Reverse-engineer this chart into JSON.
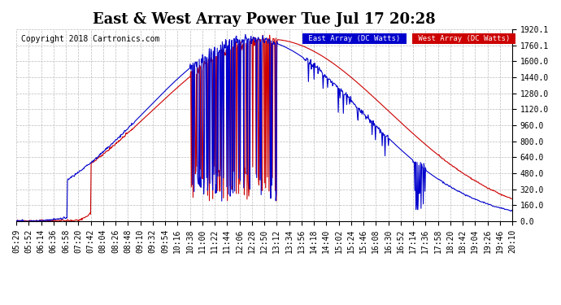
{
  "title": "East & West Array Power Tue Jul 17 20:28",
  "copyright": "Copyright 2018 Cartronics.com",
  "legend_east": "East Array (DC Watts)",
  "legend_west": "West Array (DC Watts)",
  "east_color": "#0000CC",
  "west_color": "#CC0000",
  "legend_east_bg": "#0000CC",
  "legend_west_bg": "#CC0000",
  "ymin": 0.0,
  "ymax": 1920.1,
  "yticks": [
    0.0,
    160.0,
    320.0,
    480.0,
    640.0,
    800.0,
    960.0,
    1120.0,
    1280.0,
    1440.0,
    1600.0,
    1760.1,
    1920.1
  ],
  "ytick_labels": [
    "0.0",
    "160.0",
    "320.0",
    "480.0",
    "640.0",
    "800.0",
    "960.0",
    "1120.0",
    "1280.0",
    "1440.0",
    "1600.0",
    "1760.1",
    "1920.1"
  ],
  "xtick_labels": [
    "05:29",
    "05:52",
    "06:14",
    "06:36",
    "06:58",
    "07:20",
    "07:42",
    "08:04",
    "08:26",
    "08:48",
    "09:10",
    "09:32",
    "09:54",
    "10:16",
    "10:38",
    "11:00",
    "11:22",
    "11:44",
    "12:06",
    "12:28",
    "12:50",
    "13:12",
    "13:34",
    "13:56",
    "14:18",
    "14:40",
    "15:02",
    "15:24",
    "15:46",
    "16:08",
    "16:30",
    "16:52",
    "17:14",
    "17:36",
    "17:58",
    "18:20",
    "18:42",
    "19:04",
    "19:26",
    "19:46",
    "20:10"
  ],
  "background_color": "#ffffff",
  "grid_color": "#bbbbbb",
  "title_fontsize": 13,
  "axis_fontsize": 7,
  "copyright_fontsize": 7,
  "figwidth": 6.9,
  "figheight": 3.75,
  "dpi": 100
}
